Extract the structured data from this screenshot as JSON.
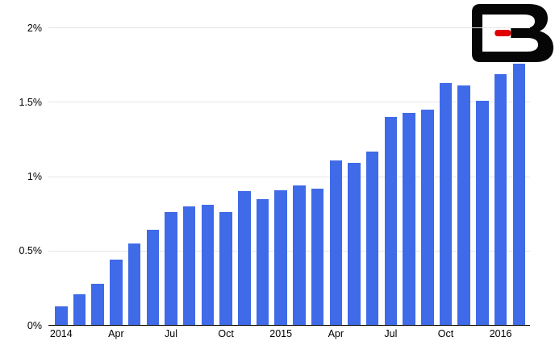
{
  "colors": {
    "bar": "#3F6AE8",
    "gridline": "#E6E6E6",
    "axis": "#000000",
    "text": "#000000",
    "background": "#FFFFFF"
  },
  "logo": {
    "name": "stylized black letter B with red dash",
    "black": "#060606",
    "red": "#E00000"
  },
  "chart_data": {
    "type": "bar",
    "x": [
      "2014-01",
      "2014-02",
      "2014-03",
      "2014-04",
      "2014-05",
      "2014-06",
      "2014-07",
      "2014-08",
      "2014-09",
      "2014-10",
      "2014-11",
      "2014-12",
      "2015-01",
      "2015-02",
      "2015-03",
      "2015-04",
      "2015-05",
      "2015-06",
      "2015-07",
      "2015-08",
      "2015-09",
      "2015-10",
      "2015-11",
      "2015-12",
      "2016-01",
      "2016-02"
    ],
    "values": [
      0.13,
      0.21,
      0.28,
      0.44,
      0.55,
      0.64,
      0.76,
      0.8,
      0.81,
      0.76,
      0.9,
      0.85,
      0.91,
      0.94,
      0.92,
      1.11,
      1.09,
      1.17,
      1.4,
      1.43,
      1.45,
      1.63,
      1.61,
      1.51,
      1.69,
      1.76
    ],
    "value_unit": "%",
    "x_tick_labels": [
      {
        "index": 0,
        "label": "2014"
      },
      {
        "index": 3,
        "label": "Apr"
      },
      {
        "index": 6,
        "label": "Jul"
      },
      {
        "index": 9,
        "label": "Oct"
      },
      {
        "index": 12,
        "label": "2015"
      },
      {
        "index": 15,
        "label": "Apr"
      },
      {
        "index": 18,
        "label": "Jul"
      },
      {
        "index": 21,
        "label": "Oct"
      },
      {
        "index": 24,
        "label": "2016"
      }
    ],
    "y_ticks": [
      {
        "value": 0,
        "label": "0%"
      },
      {
        "value": 0.5,
        "label": "0.5%"
      },
      {
        "value": 1,
        "label": "1%"
      },
      {
        "value": 1.5,
        "label": "1.5%"
      },
      {
        "value": 2,
        "label": "2%"
      }
    ],
    "ylim": [
      0,
      2
    ],
    "xlabel": "",
    "ylabel": "",
    "grid": "horizontal-only",
    "legend": "none"
  }
}
